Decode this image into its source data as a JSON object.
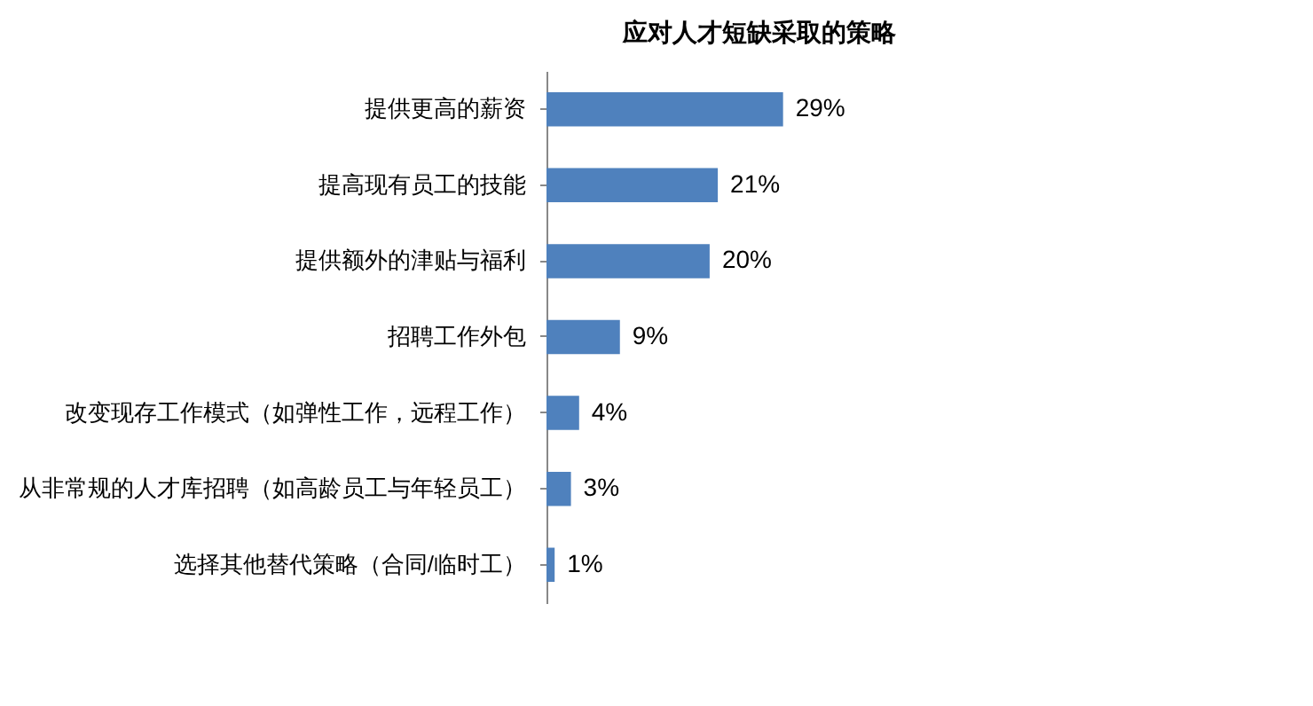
{
  "chart_data": {
    "type": "bar",
    "title": "应对人才短缺采取的策略",
    "orientation": "horizontal",
    "categories": [
      "提供更高的薪资",
      "提高现有员工的技能",
      "提供额外的津贴与福利",
      "招聘工作外包",
      "改变现存工作模式（如弹性工作，远程工作）",
      "从非常规的人才库招聘（如高龄员工与年轻员工）",
      "选择其他替代策略（合同/临时工）"
    ],
    "values": [
      29,
      21,
      20,
      9,
      4,
      3,
      1
    ],
    "value_labels": [
      "29%",
      "21%",
      "20%",
      "9%",
      "4%",
      "3%",
      "1%"
    ],
    "color": "#4f81bd",
    "tick_labels": "y",
    "grid": false
  }
}
